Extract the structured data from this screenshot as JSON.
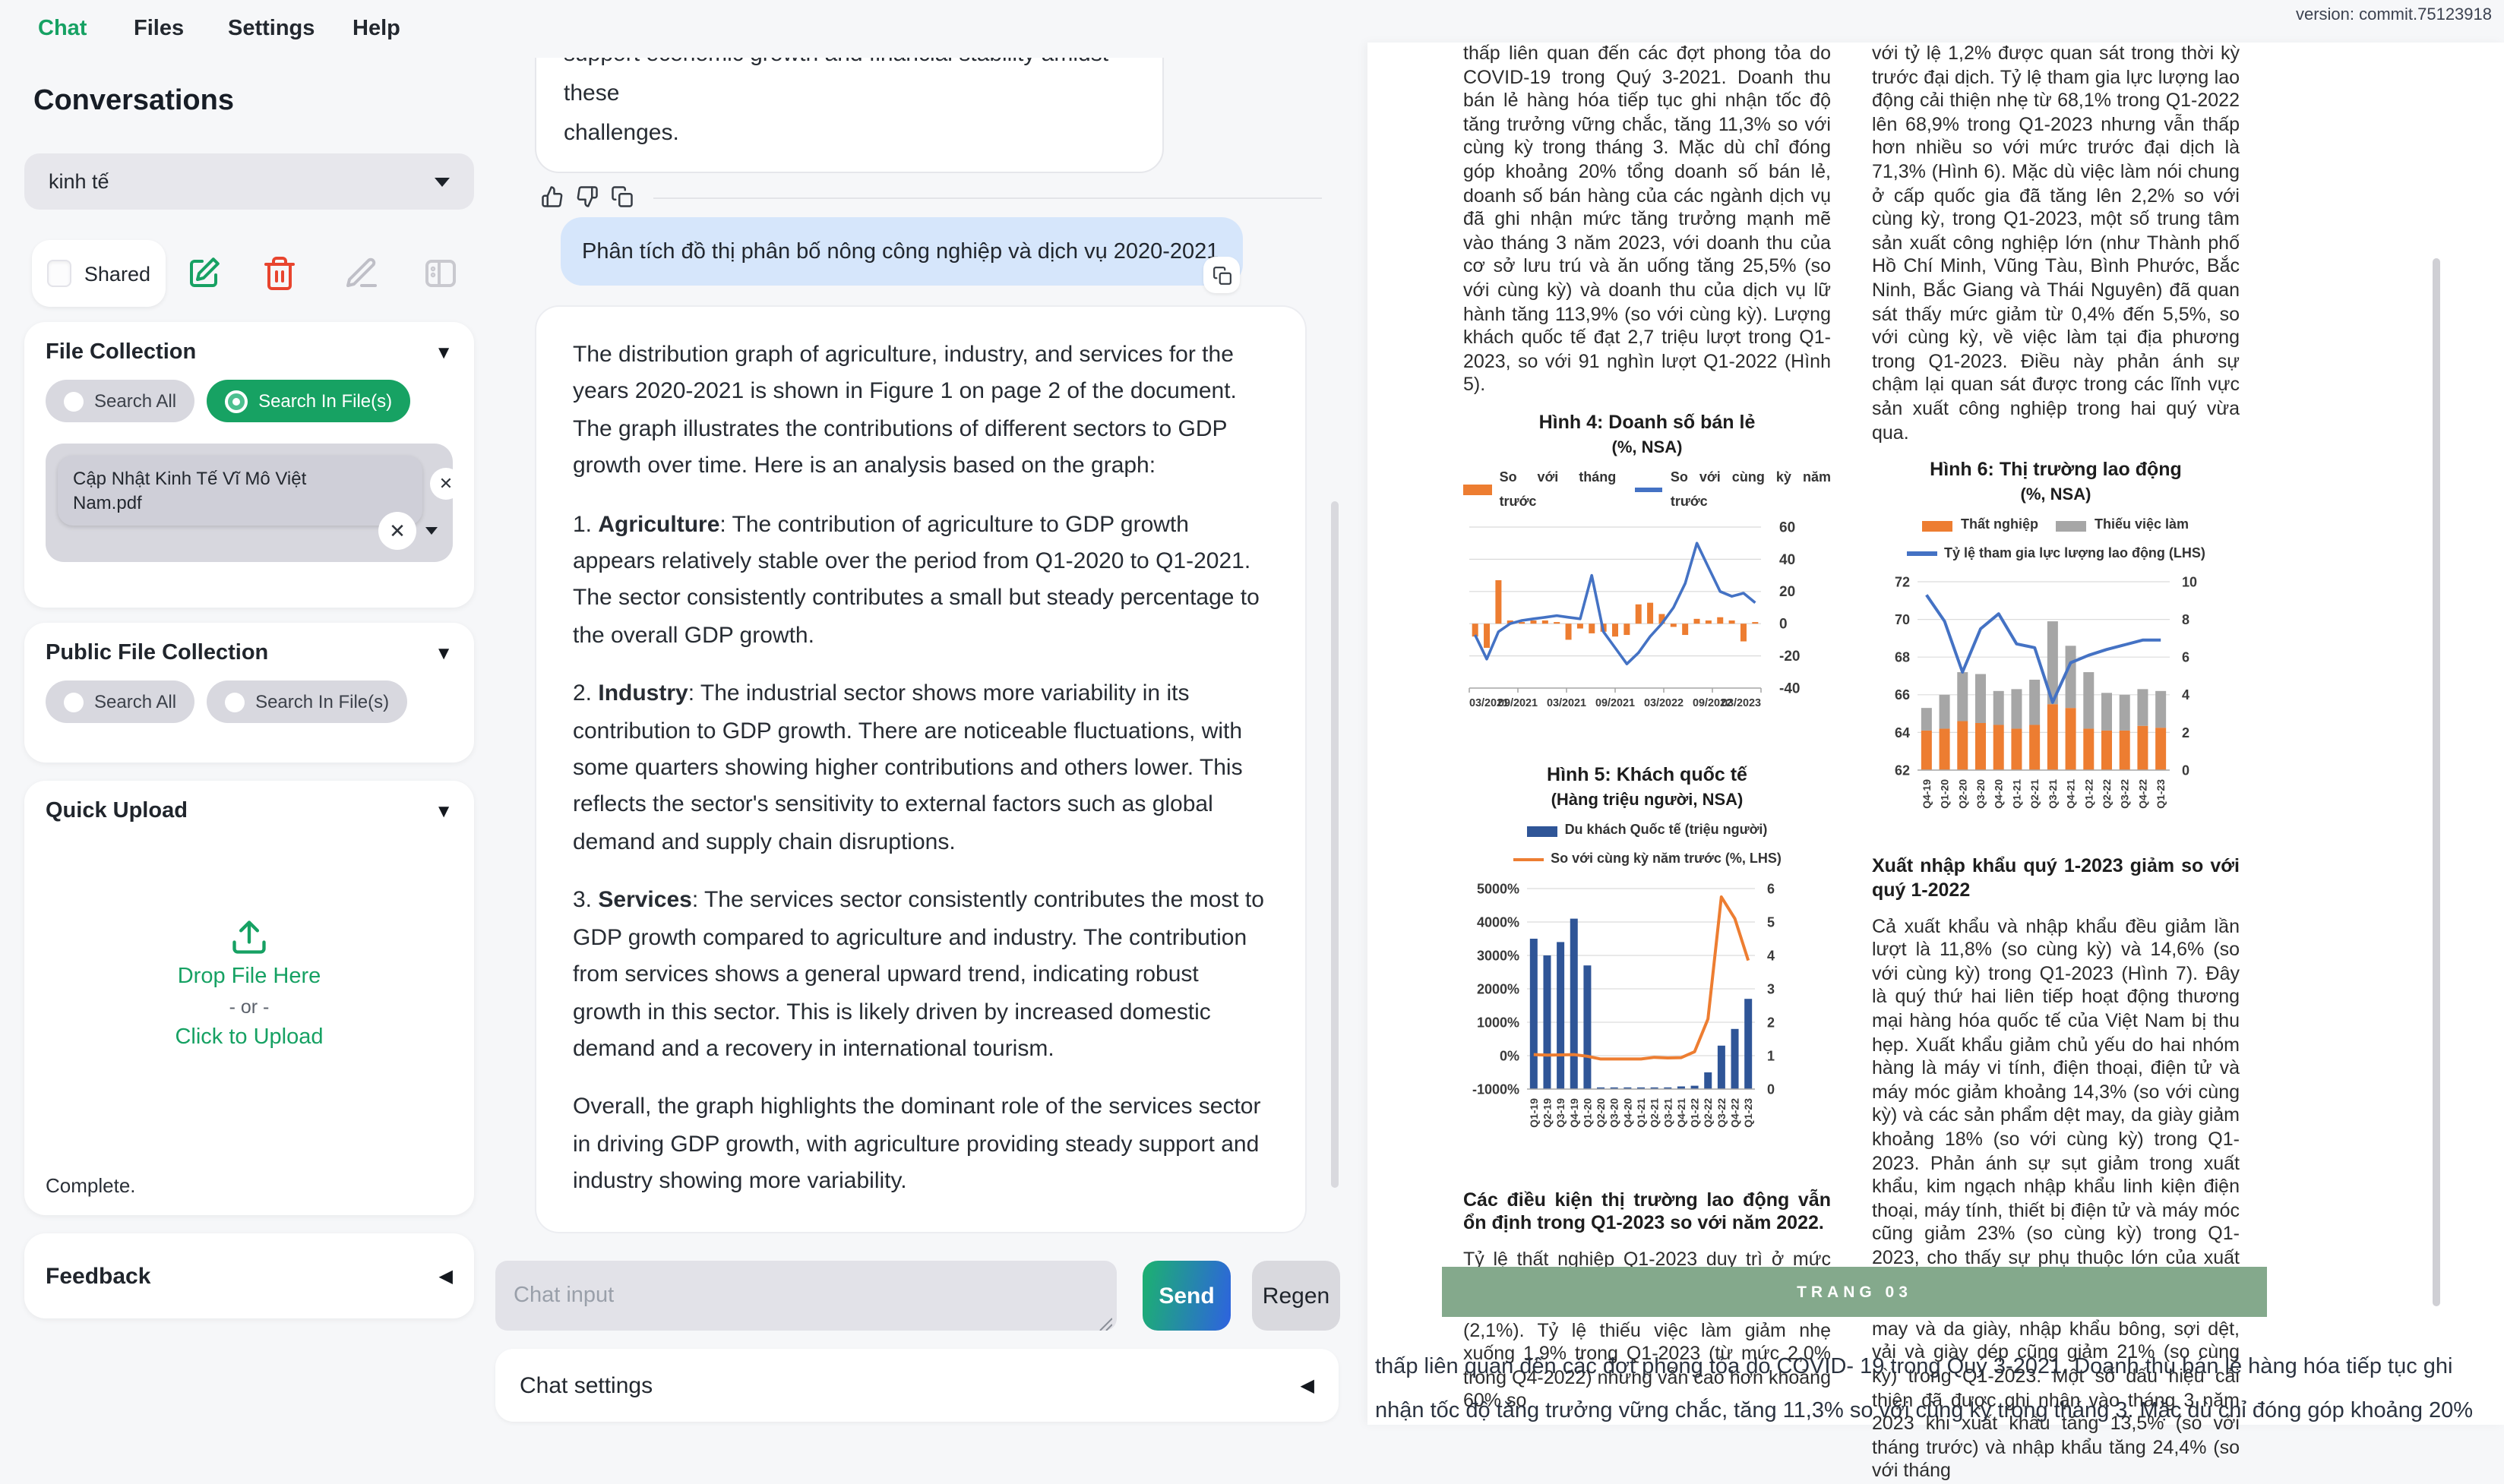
{
  "app": {
    "version": "version: commit.75123918",
    "nav": [
      {
        "label": "Chat",
        "active": true
      },
      {
        "label": "Files",
        "active": false
      },
      {
        "label": "Settings",
        "active": false
      },
      {
        "label": "Help",
        "active": false
      }
    ],
    "accent_color": "#16a163"
  },
  "sidebar": {
    "title": "Conversations",
    "conversation_selected": "kinh tế",
    "shared_label": "Shared",
    "file_collection": {
      "title": "File Collection",
      "search_all_label": "Search All",
      "search_in_files_label": "Search In File(s)",
      "file_name": "Cập Nhật Kinh Tế Vĩ Mô Việt Nam.pdf"
    },
    "public_file_collection": {
      "title": "Public File Collection",
      "search_all_label": "Search All",
      "search_in_files_label": "Search In File(s)"
    },
    "quick_upload": {
      "title": "Quick Upload",
      "drop_label": "Drop File Here",
      "or_label": "- or -",
      "click_label": "Click to Upload",
      "status": "Complete."
    },
    "feedback_title": "Feedback"
  },
  "chat": {
    "previous_reply_tail_line1": "support economic growth and financial stability amidst these",
    "previous_reply_tail_line2": "challenges.",
    "user_message": "Phân tích đồ thị phân bố nông công nghiệp và dịch vụ 2020-2021",
    "assistant_message": {
      "p1": "The distribution graph of agriculture, industry, and services for the years 2020-2021 is shown in Figure 1 on page 2 of the document. The graph illustrates the contributions of different sectors to GDP growth over time. Here is an analysis based on the graph:",
      "items": [
        {
          "num": "1. ",
          "bold": "Agriculture",
          "rest": ": The contribution of agriculture to GDP growth appears relatively stable over the period from Q1-2020 to Q1-2021. The sector consistently contributes a small but steady percentage to the overall GDP growth."
        },
        {
          "num": "2. ",
          "bold": "Industry",
          "rest": ": The industrial sector shows more variability in its contribution to GDP growth. There are noticeable fluctuations, with some quarters showing higher contributions and others lower. This reflects the sector's sensitivity to external factors such as global demand and supply chain disruptions."
        },
        {
          "num": "3. ",
          "bold": "Services",
          "rest": ": The services sector consistently contributes the most to GDP growth compared to agriculture and industry. The contribution from services shows a general upward trend, indicating robust growth in this sector. This is likely driven by increased domestic demand and a recovery in international tourism."
        }
      ],
      "closing": "Overall, the graph highlights the dominant role of the services sector in driving GDP growth, with agriculture providing steady support and industry showing more variability."
    },
    "input_placeholder": "Chat input",
    "send_label": "Send",
    "regen_label": "Regen",
    "settings_label": "Chat settings"
  },
  "document": {
    "left_column": {
      "p1": "thấp liên quan đến các đợt phong tỏa do COVID-19 trong Quý 3-2021. Doanh thu bán lẻ hàng hóa tiếp tục ghi nhận tốc độ tăng trưởng vững chắc, tăng 11,3% so với cùng kỳ trong tháng 3. Mặc dù chỉ đóng góp khoảng 20% tổng doanh số bán lẻ, doanh số bán hàng của các ngành dịch vụ đã ghi nhận mức tăng trưởng mạnh mẽ vào tháng 3 năm 2023, với doanh thu của cơ sở lưu trú và ăn uống tăng 25,5% (so với cùng kỳ) và doanh thu của dịch vụ lữ hành tăng 113,9% (so với cùng kỳ). Lượng khách quốc tế đạt 2,7 triệu lượt trong Q1-2023, so với 91 nghìn lượt Q1-2022 (Hình 5).",
      "heading": "Các điều kiện thị trường lao động vẫn ổn định trong Q1-2023 so với năm 2022.",
      "p2": "Tỷ lệ thất nghiệp Q1-2023 duy trì ở mức 2,3%, tương đương với Q4-2022 và cao hơn một chút so với mức trước đại dịch (2,1%). Tỷ lệ thiếu việc làm giảm nhẹ xuống 1,9% trong Q1-2023 (từ mức 2,0% trong Q4-2022) nhưng vẫn cao hơn khoảng 60% so"
    },
    "right_column": {
      "p1": "với tỷ lệ 1,2% được quan sát trong thời kỳ trước đại dịch. Tỷ lệ tham gia lực lượng lao động cải thiện nhẹ từ 68,1% trong Q1-2022 lên 68,9% trong Q1-2023 nhưng vẫn thấp hơn nhiều so với mức trước đại dịch là 71,3% (Hình 6). Mặc dù việc làm nói chung ở cấp quốc gia đã tăng lên 2,2% so với cùng kỳ, trong Q1-2023, một số trung tâm sản xuất công nghiệp lớn (như Thành phố Hồ Chí Minh, Vũng Tàu, Bình Phước, Bắc Ninh, Bắc Giang và Thái Nguyên) đã quan sát thấy mức giảm từ 0,4% đến 5,5%, so với cùng kỳ, về việc làm tại địa phương trong Q1-2023. Điều này phản ánh sự chậm lại quan sát được trong các lĩnh vực sản xuất công nghiệp trong hai quý vừa qua.",
      "heading": "Xuất nhập khẩu quý 1-2023 giảm so với quý 1-2022",
      "p2": "Cả xuất khẩu và nhập khẩu đều giảm lần lượt là 11,8% (so cùng kỳ) và 14,6% (so với cùng kỳ) trong Q1-2023 (Hình 7). Đây là quý thứ hai liên tiếp hoạt động thương mại hàng hóa quốc tế của Việt Nam bị thu hẹp. Xuất khẩu giảm chủ yếu do hai nhóm hàng là máy vi tính, điện thoại, điện tử và máy móc giảm khoảng 14,3% (so với cùng kỳ) và các sản phẩm dệt may, da giày giảm khoảng 18% (so với cùng kỳ) trong Q1-2023. Phản ánh sự sụt giảm trong xuất khẩu, kim ngạch nhập khẩu linh kiện điện thoại, máy tính, thiết bị điện tử và máy móc cũng giảm 23% (so cùng kỳ) trong Q1-2023, cho thấy sự phụ thuộc lớn của xuất khẩu công nghệ cao vào các đầu vào nhập khẩu này. Là đầu vào chính của ngành dệt may và da giày, nhập khẩu bông, sợi dệt, vải và giày dép cũng giảm 21% (so cùng kỳ) trong Q1-2023. Một số dấu hiệu cải thiện đã được ghi nhận vào tháng 3 năm 2023 khi xuất khẩu tăng 13,5% (so với tháng trước) và nhập khẩu tăng 24,4% (so với tháng"
    },
    "page_label": "TRANG 03",
    "overflow_line1": "thấp liên quan đến các đợt phong tỏa do COVID- 19 trong Quý 3-2021. Doanh thu bán lẻ hàng hóa tiếp tục ghi",
    "overflow_line2": "nhận tốc độ tăng trưởng vững chắc, tăng 11,3% so với cùng kỳ trong tháng 3. Mặc dù chỉ đóng góp khoảng 20%",
    "figures": [
      {
        "chart_data": {
          "type": "bar",
          "combo": "bar+line",
          "title": "Hình 4: Doanh số bán lẻ",
          "subtitle": "(%, NSA)",
          "legend": [
            {
              "label": "So với tháng trước",
              "color": "#ED7D31",
              "kind": "bar"
            },
            {
              "label": "So với cùng kỳ năm trước",
              "color": "#4472C4",
              "kind": "line"
            }
          ],
          "x_tick_labels": [
            "03/2021",
            "09/2021",
            "03/2021",
            "09/2021",
            "03/2022",
            "09/2022",
            "03/2023"
          ],
          "ylim": [
            -40,
            60
          ],
          "yticks": [
            60,
            40,
            20,
            0,
            -20,
            -40
          ],
          "bar_series": {
            "name": "So với tháng trước",
            "values": [
              -8,
              -15,
              27,
              2,
              1,
              2,
              2,
              1,
              -10,
              -3,
              -6,
              -5,
              -8,
              -7,
              12,
              13,
              6,
              -2,
              -7,
              3,
              2,
              4,
              2,
              -11,
              1
            ]
          },
          "line_series": {
            "name": "So với cùng kỳ năm trước",
            "values": [
              -7,
              -22,
              -5,
              0,
              2,
              3,
              4,
              5,
              4,
              3,
              30,
              -5,
              -15,
              -25,
              -18,
              -8,
              0,
              10,
              25,
              50,
              35,
              20,
              17,
              19,
              13
            ]
          }
        }
      },
      {
        "chart_data": {
          "type": "bar",
          "combo": "bar+line dual axis",
          "title": "Hình 5: Khách quốc tế",
          "subtitle": "(Hàng triệu người, NSA)",
          "legend": [
            {
              "label": "Du khách Quốc tế (triệu người)",
              "color": "#2F5597",
              "kind": "bar"
            },
            {
              "label": "So với cùng kỳ năm trước (%, LHS)",
              "color": "#ED7D31",
              "kind": "line"
            }
          ],
          "categories": [
            "Q1-19",
            "Q2-19",
            "Q3-19",
            "Q4-19",
            "Q1-20",
            "Q2-20",
            "Q3-20",
            "Q4-20",
            "Q1-21",
            "Q2-21",
            "Q3-21",
            "Q4-21",
            "Q1-22",
            "Q2-22",
            "Q3-22",
            "Q4-22",
            "Q1-23"
          ],
          "left_axis": {
            "ticks": [
              "5000%",
              "4000%",
              "3000%",
              "2000%",
              "1000%",
              "0%",
              "-1000%"
            ],
            "min": -1000,
            "max": 5000
          },
          "right_axis": {
            "ticks": [
              6,
              5,
              4,
              3,
              2,
              1,
              0
            ],
            "min": 0,
            "max": 6
          },
          "bar_series": {
            "name": "Du khách Quốc tế (triệu người)",
            "axis": "right",
            "values": [
              4.5,
              4.0,
              4.4,
              5.1,
              3.7,
              0.05,
              0.05,
              0.05,
              0.05,
              0.05,
              0.05,
              0.08,
              0.1,
              0.5,
              1.3,
              1.8,
              2.7
            ]
          },
          "line_series": {
            "name": "So với cùng kỳ năm trước (%, LHS)",
            "axis": "left",
            "values": [
              30,
              20,
              25,
              30,
              -20,
              -99,
              -99,
              -99,
              -98,
              -50,
              -70,
              -60,
              120,
              1100,
              4750,
              4100,
              2850
            ]
          }
        }
      },
      {
        "chart_data": {
          "type": "bar",
          "combo": "stacked bar+line dual axis",
          "title": "Hình 6: Thị trường lao động",
          "subtitle": "(%, NSA)",
          "legend": [
            {
              "label": "Thất nghiệp",
              "color": "#ED7D31",
              "kind": "bar"
            },
            {
              "label": "Thiếu việc làm",
              "color": "#A6A6A6",
              "kind": "bar"
            },
            {
              "label": "Tỷ lệ tham gia lực lượng lao động (LHS)",
              "color": "#4472C4",
              "kind": "line"
            }
          ],
          "categories": [
            "Q4-19",
            "Q1-20",
            "Q2-20",
            "Q3-20",
            "Q4-20",
            "Q1-21",
            "Q2-21",
            "Q3-21",
            "Q4-21",
            "Q1-22",
            "Q2-22",
            "Q3-22",
            "Q4-22",
            "Q1-23"
          ],
          "left_axis": {
            "ticks": [
              72,
              70,
              68,
              66,
              64,
              62
            ],
            "min": 62,
            "max": 72
          },
          "right_axis": {
            "ticks": [
              10,
              8,
              6,
              4,
              2,
              0
            ],
            "min": 0,
            "max": 10
          },
          "series": [
            {
              "name": "Thất nghiệp",
              "type": "bar",
              "axis": "right",
              "values": [
                2.1,
                2.2,
                2.6,
                2.5,
                2.4,
                2.2,
                2.4,
                3.5,
                3.3,
                2.2,
                2.1,
                2.1,
                2.35,
                2.25
              ]
            },
            {
              "name": "Thiếu việc làm",
              "type": "bar",
              "axis": "right",
              "values": [
                1.2,
                1.8,
                2.6,
                2.6,
                1.8,
                2.1,
                2.4,
                4.4,
                3.3,
                3.0,
                2.0,
                1.9,
                1.95,
                1.95
              ]
            },
            {
              "name": "Tỷ lệ tham gia lực lượng lao động (LHS)",
              "type": "line",
              "axis": "left",
              "values": [
                71.3,
                69.9,
                67.2,
                69.5,
                70.3,
                68.7,
                68.5,
                65.6,
                67.7,
                68.1,
                68.4,
                68.65,
                68.9,
                68.9
              ]
            }
          ]
        }
      }
    ]
  }
}
